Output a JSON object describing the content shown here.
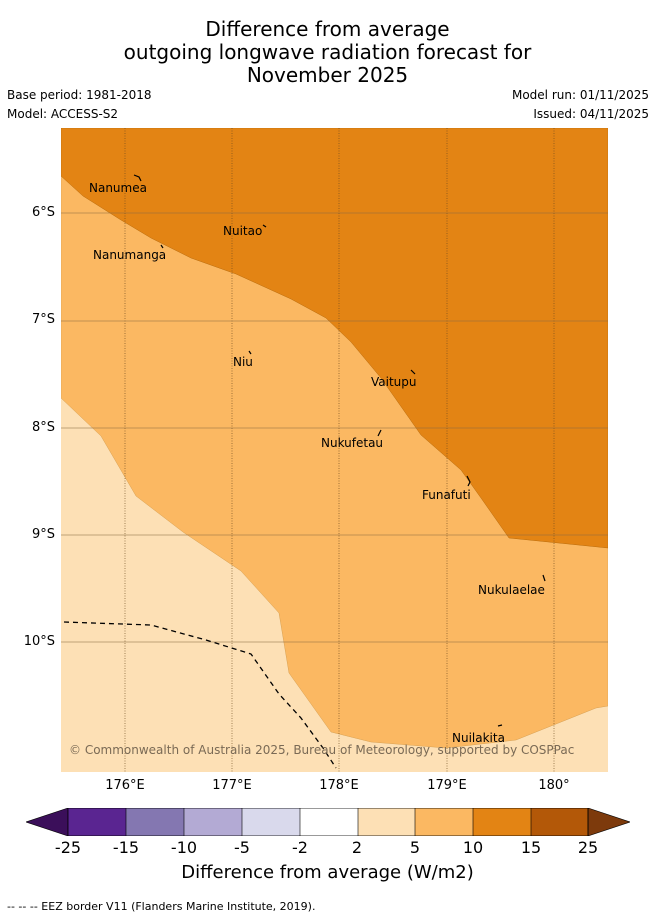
{
  "title": {
    "line1": "Difference from average",
    "line2": "outgoing longwave radiation forecast for",
    "line3": "November 2025"
  },
  "meta": {
    "base_period": "Base period: 1981-2018",
    "model": "Model: ACCESS-S2",
    "model_run": "Model run: 01/11/2025",
    "issued": "Issued: 04/11/2025"
  },
  "map": {
    "lat_labels": [
      "6°S",
      "7°S",
      "8°S",
      "9°S",
      "10°S"
    ],
    "lon_labels": [
      "176°E",
      "177°E",
      "178°E",
      "179°E",
      "180°"
    ],
    "islands": [
      {
        "name": "Nanumea"
      },
      {
        "name": "Nuitao"
      },
      {
        "name": "Nanumanga"
      },
      {
        "name": "Niu"
      },
      {
        "name": "Vaitupu"
      },
      {
        "name": "Nukufetau"
      },
      {
        "name": "Funafuti"
      },
      {
        "name": "Nukulaelae"
      },
      {
        "name": "Nuilakita"
      }
    ],
    "copyright": "© Commonwealth of Australia 2025, Bureau of Meteorology, supported by COSPPac",
    "colors": {
      "band_10_15": "#e38414",
      "band_5_10": "#fbb862",
      "band_2_5": "#fde0b5"
    }
  },
  "colorbar": {
    "labels": [
      "-25",
      "-15",
      "-10",
      "-5",
      "-2",
      "2",
      "5",
      "10",
      "15",
      "25"
    ],
    "colors": [
      "#3b0f5a",
      "#5a2591",
      "#8477b1",
      "#b3aad4",
      "#d9d9ec",
      "#ffffff",
      "#fde0b5",
      "#fbb862",
      "#e38414",
      "#b35808",
      "#7d3a0c"
    ],
    "title": "Difference from average (W/m2)"
  },
  "footer": {
    "legend": "--  --  -- EEZ border V11 (Flanders Marine Institute, 2019)."
  }
}
